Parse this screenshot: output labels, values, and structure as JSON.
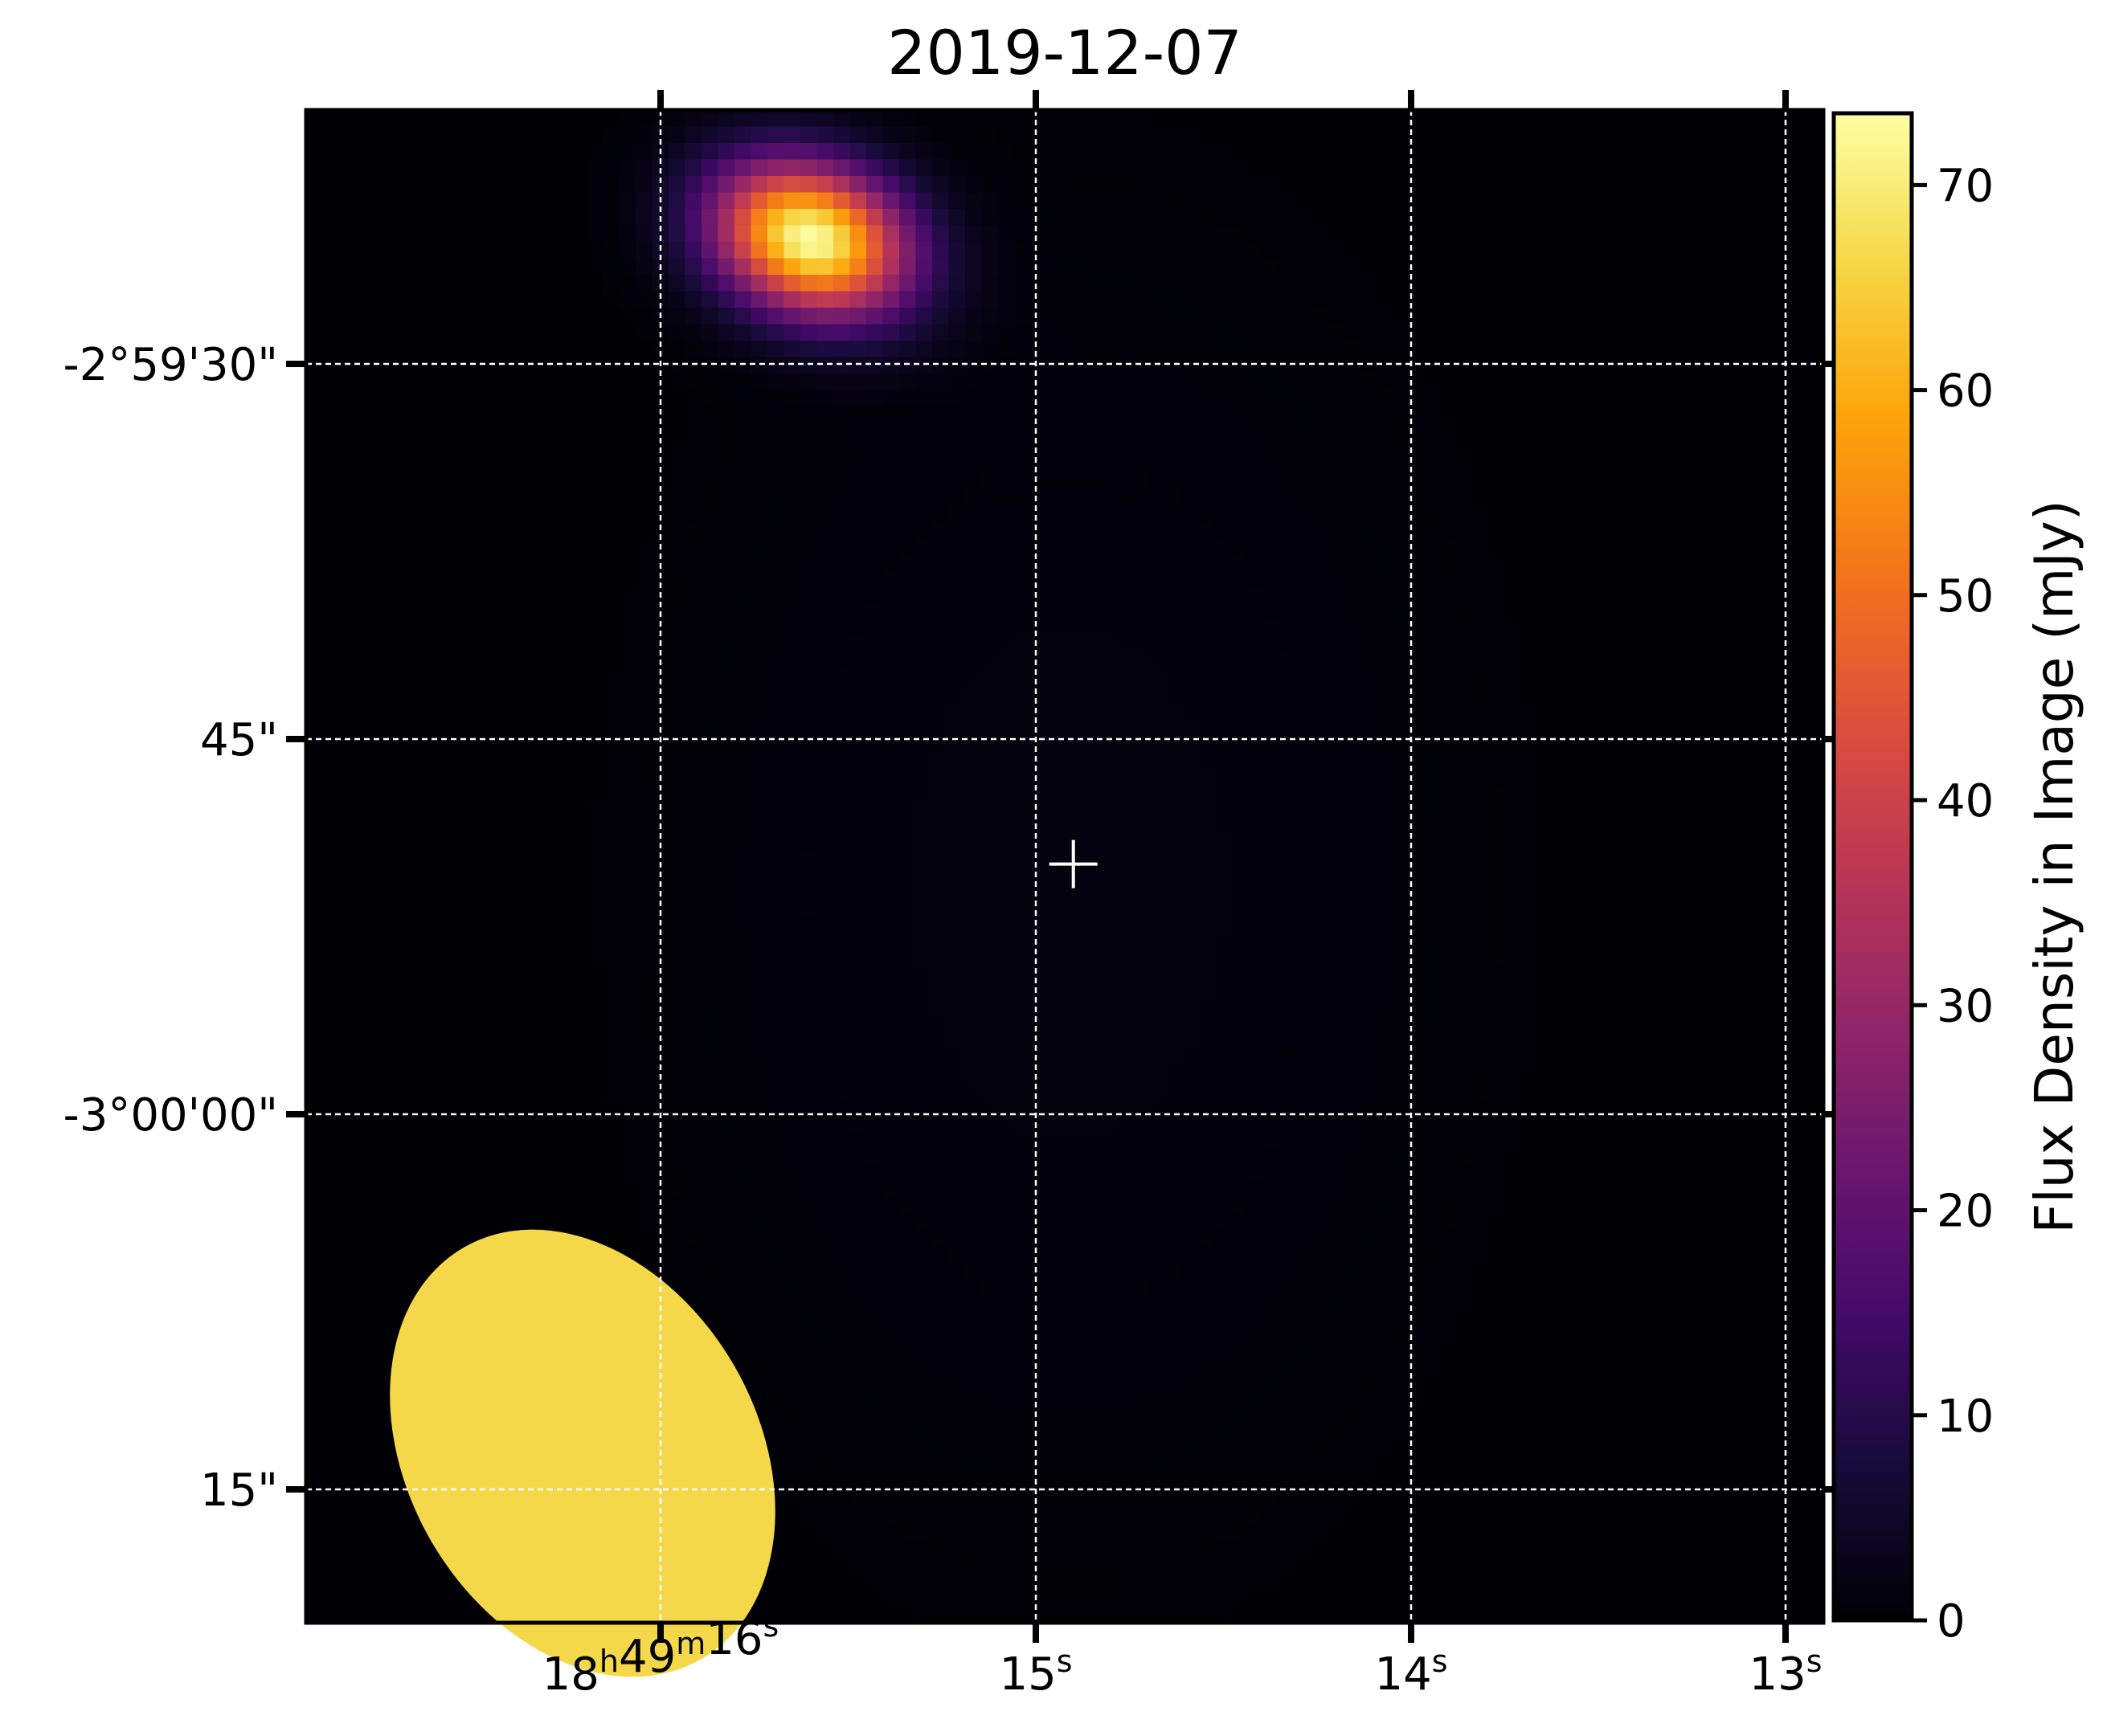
{
  "chart_data": {
    "type": "heatmap",
    "title": "2019-12-07",
    "colormap": "inferno",
    "xaxis": {
      "label": "",
      "scale": "right ascension",
      "ticks": [
        {
          "value": "18h49m16s",
          "parts": [
            {
              "t": "18"
            },
            {
              "t": "h",
              "sup": true
            },
            {
              "t": "49"
            },
            {
              "t": "m",
              "sup": true
            },
            {
              "t": "16"
            },
            {
              "t": "s",
              "sup": true
            }
          ]
        },
        {
          "value": "15s",
          "parts": [
            {
              "t": "15"
            },
            {
              "t": "s",
              "sup": true
            }
          ]
        },
        {
          "value": "14s",
          "parts": [
            {
              "t": "14"
            },
            {
              "t": "s",
              "sup": true
            }
          ]
        },
        {
          "value": "13s",
          "parts": [
            {
              "t": "13"
            },
            {
              "t": "s",
              "sup": true
            }
          ]
        }
      ]
    },
    "yaxis": {
      "label": "",
      "scale": "declination",
      "ticks": [
        {
          "label": "-2°59'30\"",
          "value_arcsec": -10770
        },
        {
          "label": "45\"",
          "value_arcsec": -10785
        },
        {
          "label": "-3°00'00\"",
          "value_arcsec": -10800
        },
        {
          "label": "15\"",
          "value_arcsec": -10815
        }
      ]
    },
    "grid": true,
    "grid_style": "white dashed",
    "source": {
      "peak_flux_mJy": 73,
      "peak_ra": "18h49m15.6s",
      "peak_dec": "-2°59'25\""
    },
    "target_marker": {
      "symbol": "+",
      "ra": "18h49m14.9s",
      "dec": "-2°59'50\"",
      "color": "#ffffff"
    },
    "beam": {
      "color": "#f5d84a",
      "major_arcsec": 9.5,
      "minor_arcsec": 7,
      "pa_deg": 30
    },
    "colorbar": {
      "label": "Flux Density in Image (mJy)",
      "range": [
        0,
        73.5
      ],
      "ticks": [
        0,
        10,
        20,
        30,
        40,
        50,
        60,
        70
      ]
    }
  }
}
